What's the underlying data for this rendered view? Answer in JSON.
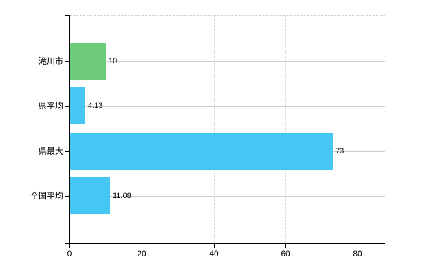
{
  "chart_data": {
    "type": "bar",
    "orientation": "horizontal",
    "title": "",
    "xlabel": "",
    "ylabel": "",
    "categories": [
      "滝川市",
      "県平均",
      "県最大",
      "全国平均"
    ],
    "values": [
      10,
      4.13,
      73,
      11.08
    ],
    "value_labels": [
      "10",
      "4.13",
      "73",
      "11.08"
    ],
    "bar_colors": [
      "#6ecb7b",
      "#44c7f2",
      "#44c7f2",
      "#44c7f2"
    ],
    "x_ticks": [
      0,
      20,
      40,
      60,
      80
    ],
    "x_tick_labels": [
      "0",
      "20",
      "40",
      "60",
      "80"
    ],
    "xlim": [
      0,
      87.6
    ],
    "legend": "none",
    "grid": {
      "horizontal": "solid",
      "vertical": "dashed",
      "top_border": "dashed"
    },
    "colors": {
      "background": "#ffffff",
      "axis": "#000000",
      "gridline": "#cccccc",
      "text": "#000000"
    }
  }
}
